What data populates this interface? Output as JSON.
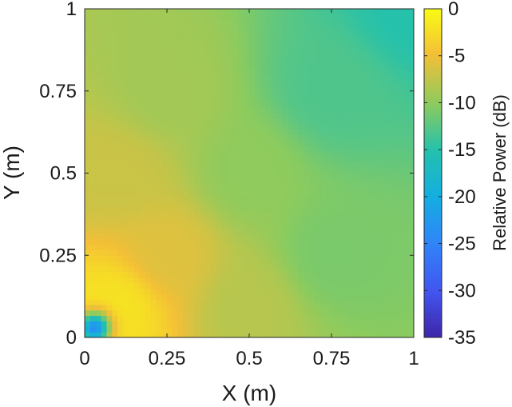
{
  "chart_data": {
    "type": "heatmap",
    "title": "",
    "xlabel": "X (m)",
    "ylabel": "Y (m)",
    "colorbar_label": "Relative Power (dB)",
    "colormap": "parula",
    "xlim": [
      0,
      1
    ],
    "ylim": [
      0,
      1
    ],
    "clim": [
      -35,
      0
    ],
    "x_ticks": [
      0,
      0.25,
      0.5,
      0.75,
      1
    ],
    "x_tick_labels": [
      "0",
      "0.25",
      "0.5",
      "0.75",
      "1"
    ],
    "y_ticks": [
      0,
      0.25,
      0.5,
      0.75,
      1
    ],
    "y_tick_labels": [
      "0",
      "0.25",
      "0.5",
      "0.75",
      "1"
    ],
    "colorbar_ticks": [
      0,
      -5,
      -10,
      -15,
      -20,
      -25,
      -30,
      -35
    ],
    "colorbar_tick_labels": [
      "0",
      "-5",
      "-10",
      "-15",
      "-20",
      "-25",
      "-30",
      "-35"
    ],
    "source": {
      "x": 0.03,
      "y": 0.03,
      "min_db": -24
    },
    "field_samples": [
      {
        "x": 0.1,
        "y": 0.1,
        "db": -2
      },
      {
        "x": 0.25,
        "y": 0.25,
        "db": -6
      },
      {
        "x": 0.1,
        "y": 0.5,
        "db": -7
      },
      {
        "x": 0.5,
        "y": 0.1,
        "db": -8
      },
      {
        "x": 0.5,
        "y": 0.5,
        "db": -10
      },
      {
        "x": 0.25,
        "y": 0.75,
        "db": -9
      },
      {
        "x": 0.75,
        "y": 0.25,
        "db": -11
      },
      {
        "x": 0.75,
        "y": 0.75,
        "db": -13
      },
      {
        "x": 1,
        "y": 1,
        "db": -15
      }
    ]
  }
}
